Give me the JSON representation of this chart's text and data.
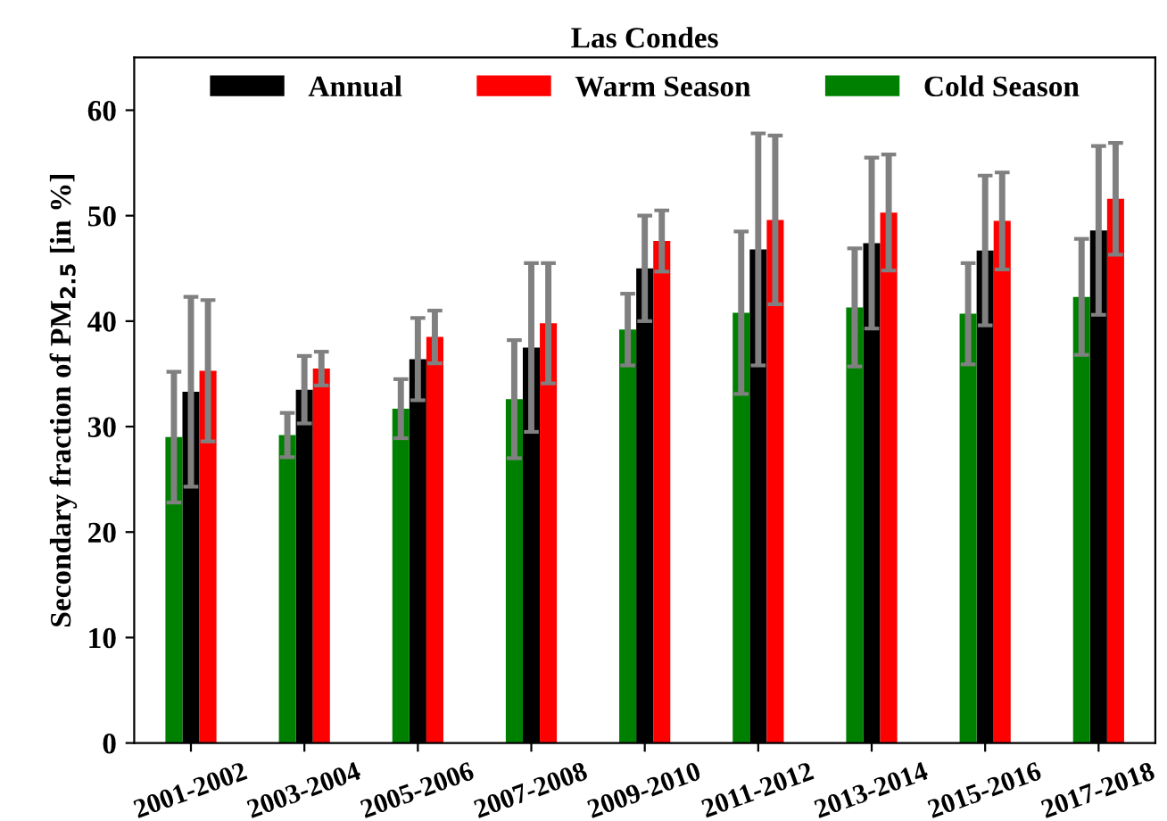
{
  "chart_data": {
    "type": "bar",
    "title": "Las Condes",
    "ylabel": "Secondary fraction of PM$_{2.5}$ [in %]",
    "categories": [
      "2001-2002",
      "2003-2004",
      "2005-2006",
      "2007-2008",
      "2009-2010",
      "2011-2012",
      "2013-2014",
      "2015-2016",
      "2017-2018"
    ],
    "series": [
      {
        "name": "Annual",
        "color": "#000000",
        "values": [
          33.3,
          33.5,
          36.4,
          37.5,
          45.0,
          46.8,
          47.4,
          46.7,
          48.6
        ],
        "errors": [
          9.0,
          3.2,
          3.9,
          8.0,
          5.0,
          11.0,
          8.1,
          7.1,
          8.0
        ]
      },
      {
        "name": "Warm Season",
        "color": "#ff0000",
        "values": [
          35.3,
          35.5,
          38.5,
          39.8,
          47.6,
          49.6,
          50.3,
          49.5,
          51.6
        ],
        "errors": [
          6.7,
          1.6,
          2.5,
          5.7,
          2.9,
          8.0,
          5.5,
          4.6,
          5.3
        ]
      },
      {
        "name": "Cold Season",
        "color": "#008000",
        "values": [
          29.0,
          29.2,
          31.7,
          32.6,
          39.2,
          40.8,
          41.3,
          40.7,
          42.3
        ],
        "errors": [
          6.2,
          2.1,
          2.8,
          5.6,
          3.4,
          7.7,
          5.6,
          4.8,
          5.5
        ]
      }
    ],
    "ylim": [
      0,
      65
    ],
    "yticks": [
      0,
      10,
      20,
      30,
      40,
      50,
      60
    ],
    "grid": false,
    "legend": "top"
  }
}
